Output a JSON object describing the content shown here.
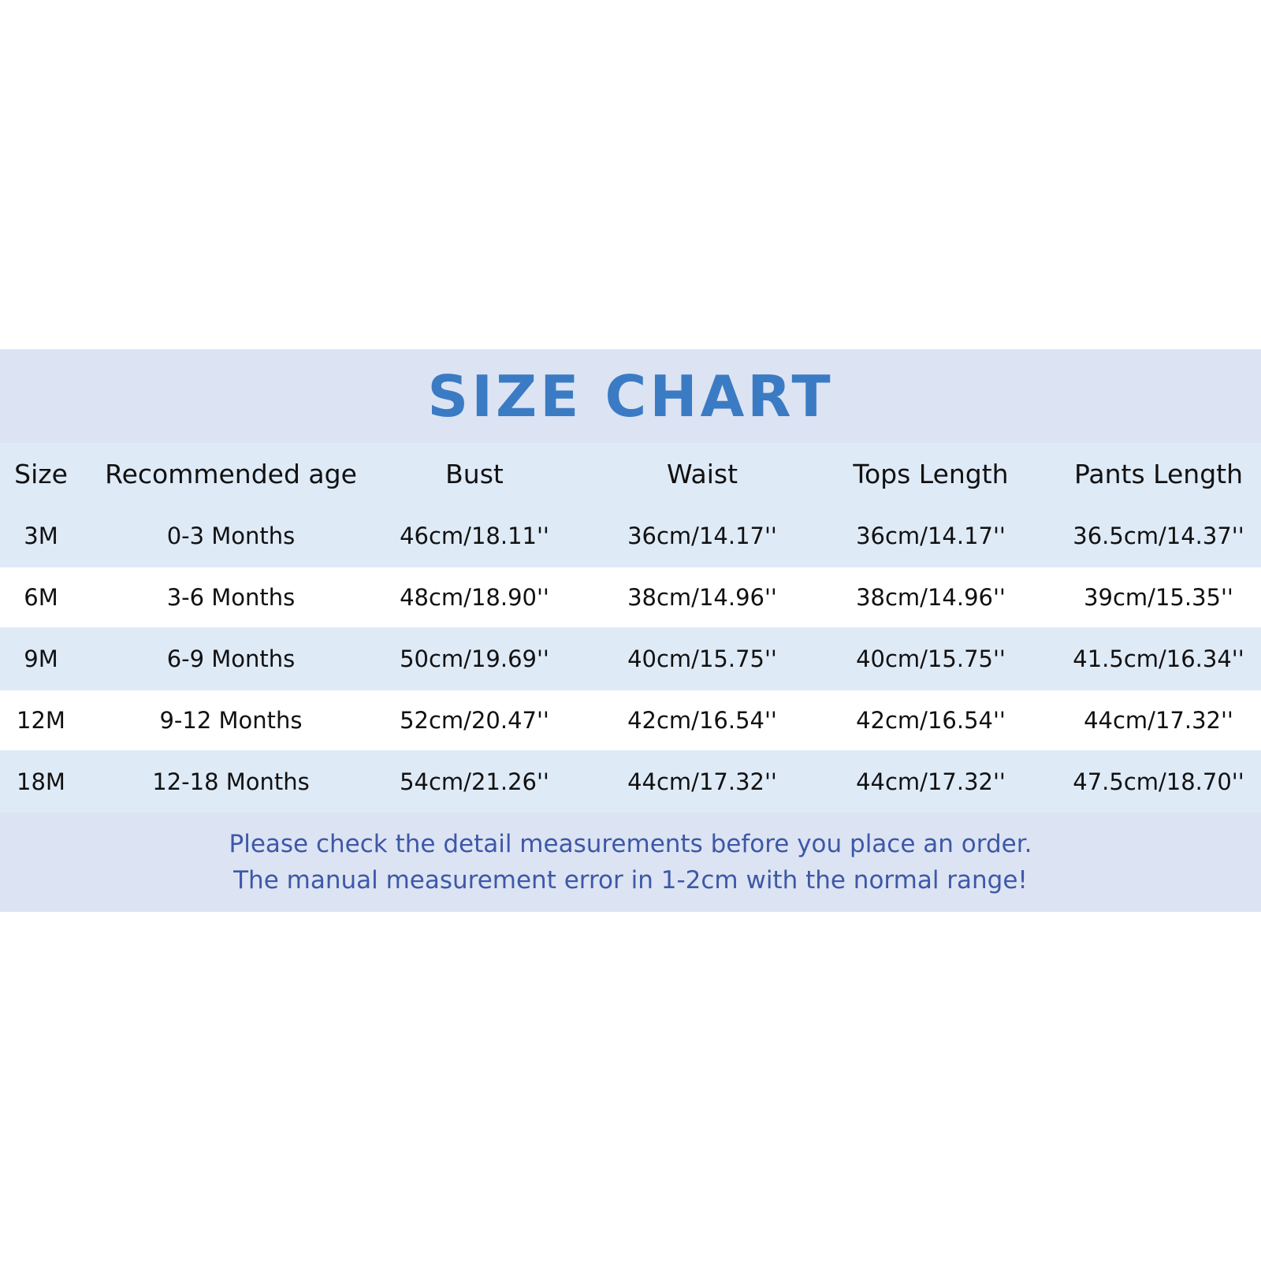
{
  "title": "SIZE CHART",
  "table": {
    "headers": [
      "Size",
      "Recommended age",
      "Bust",
      "Waist",
      "Tops Length",
      "Pants Length"
    ],
    "rows": [
      [
        "3M",
        "0-3 Months",
        "46cm/18.11''",
        "36cm/14.17''",
        "36cm/14.17''",
        "36.5cm/14.37''"
      ],
      [
        "6M",
        "3-6 Months",
        "48cm/18.90''",
        "38cm/14.96''",
        "38cm/14.96''",
        "39cm/15.35''"
      ],
      [
        "9M",
        "6-9 Months",
        "50cm/19.69''",
        "40cm/15.75''",
        "40cm/15.75''",
        "41.5cm/16.34''"
      ],
      [
        "12M",
        "9-12 Months",
        "52cm/20.47''",
        "42cm/16.54''",
        "42cm/16.54''",
        "44cm/17.32''"
      ],
      [
        "18M",
        "12-18 Months",
        "54cm/21.26''",
        "44cm/17.32''",
        "44cm/17.32''",
        "47.5cm/18.70''"
      ]
    ]
  },
  "notes": [
    "Please check the detail measurements before you place an order.",
    "The manual measurement error in 1-2cm with the normal range!"
  ],
  "colors": {
    "title": "#3a7bc4",
    "band": "#dce3f2",
    "row_alt": "#dfeaf7",
    "note": "#3d58a8"
  }
}
